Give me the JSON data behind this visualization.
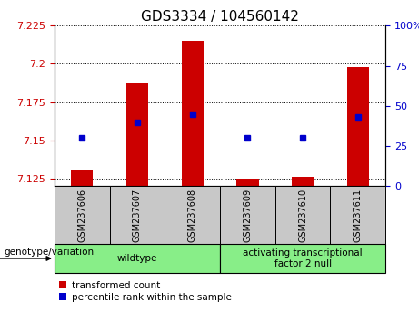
{
  "title": "GDS3334 / 104560142",
  "samples": [
    "GSM237606",
    "GSM237607",
    "GSM237608",
    "GSM237609",
    "GSM237610",
    "GSM237611"
  ],
  "transformed_counts": [
    7.131,
    7.187,
    7.215,
    7.125,
    7.126,
    7.198
  ],
  "percentile_ranks": [
    30,
    40,
    45,
    30,
    30,
    43
  ],
  "bar_baseline": 7.12,
  "left_ylim": [
    7.12,
    7.225
  ],
  "right_ylim": [
    0,
    100
  ],
  "left_yticks": [
    7.125,
    7.15,
    7.175,
    7.2,
    7.225
  ],
  "right_yticks": [
    0,
    25,
    50,
    75,
    100
  ],
  "bar_color": "#cc0000",
  "dot_color": "#0000cc",
  "groups": [
    {
      "label": "wildtype",
      "indices": [
        0,
        1,
        2
      ]
    },
    {
      "label": "activating transcriptional\nfactor 2 null",
      "indices": [
        3,
        4,
        5
      ]
    }
  ],
  "group_color": "#88ee88",
  "sample_box_color": "#c8c8c8",
  "legend_red": "transformed count",
  "legend_blue": "percentile rank within the sample",
  "genotype_label": "genotype/variation",
  "title_fontsize": 11,
  "tick_fontsize": 8,
  "bar_width": 0.4
}
